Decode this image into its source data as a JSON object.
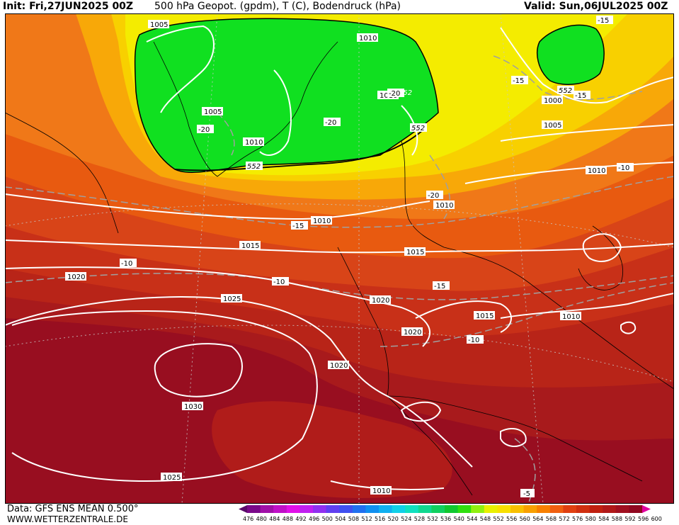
{
  "header": {
    "init": "Init: Fri,27JUN2025 00Z",
    "title": "500 hPa Geopot. (gpdm), T (C), Bodendruck (hPa)",
    "valid": "Valid: Sun,06JUL2025 00Z"
  },
  "footer": {
    "source": "Data: GFS ENS MEAN 0.500°",
    "website": "WWW.WETTERZENTRALE.DE"
  },
  "legend": {
    "ticks": [
      "476",
      "480",
      "484",
      "488",
      "492",
      "496",
      "500",
      "504",
      "508",
      "512",
      "516",
      "520",
      "524",
      "528",
      "532",
      "536",
      "540",
      "544",
      "548",
      "552",
      "556",
      "560",
      "564",
      "568",
      "572",
      "576",
      "580",
      "584",
      "588",
      "592",
      "596",
      "600"
    ],
    "colors": [
      "#5a0a6a",
      "#7a0a8a",
      "#a010a8",
      "#c010c8",
      "#e010e8",
      "#c020f0",
      "#9030f0",
      "#6040f0",
      "#4050f0",
      "#2070f0",
      "#1090f0",
      "#10b0f0",
      "#10d0e8",
      "#10e0c0",
      "#10d890",
      "#10d060",
      "#10c830",
      "#30e010",
      "#90f010",
      "#e8f000",
      "#f8e000",
      "#f8c000",
      "#f8a000",
      "#f88000",
      "#f06010",
      "#e04010",
      "#d03010",
      "#c02010",
      "#b01818",
      "#a01020",
      "#900820",
      "#e000a0"
    ]
  },
  "map": {
    "isobar_labels": [
      "1005",
      "1010",
      "1005",
      "1010",
      "1010",
      "1000",
      "1005",
      "1010",
      "1010",
      "1010",
      "1015",
      "1015",
      "1020",
      "1020",
      "1025",
      "1020",
      "1015",
      "1010",
      "1020",
      "1030",
      "1025",
      "1010"
    ],
    "height_labels": [
      "552",
      "552",
      "552",
      "552"
    ],
    "temp_labels": [
      "-15",
      "-15",
      "-15",
      "-20",
      "-20",
      "-20",
      "-20",
      "-10",
      "-15",
      "-10",
      "-10",
      "-15",
      "-10",
      "-5"
    ]
  }
}
